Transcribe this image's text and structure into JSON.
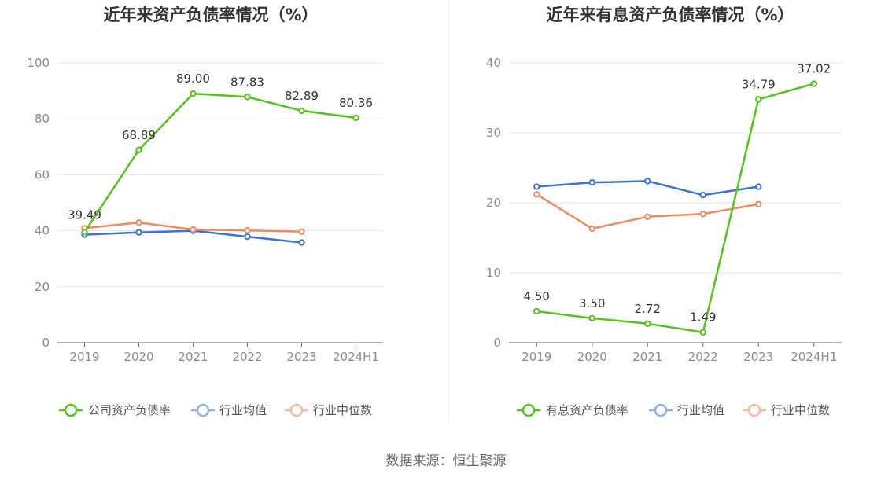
{
  "source_text": "数据来源：恒生聚源",
  "colors": {
    "company": "#52c41a",
    "industry_avg": "#3a72d8",
    "industry_median": "#f08a5d",
    "grid": "#e6e6e6",
    "axis": "#666666",
    "divider": "#e8e8e8",
    "legend_avg": "#8fb0ec",
    "legend_median": "#f7b89c"
  },
  "chart_data": [
    {
      "type": "line",
      "title": "近年来资产负债率情况（%）",
      "categories": [
        "2019",
        "2020",
        "2021",
        "2022",
        "2023",
        "2024H1"
      ],
      "ylim": [
        0,
        100
      ],
      "yticks": [
        0,
        20,
        40,
        60,
        80,
        100
      ],
      "series": [
        {
          "name": "公司资产负债率",
          "key": "company",
          "values": [
            39.49,
            68.89,
            89.0,
            87.83,
            82.89,
            80.36
          ],
          "labels": [
            "39.49",
            "68.89",
            "89.00",
            "87.83",
            "82.89",
            "80.36"
          ]
        },
        {
          "name": "行业均值",
          "key": "industry_avg",
          "values": [
            38.6,
            39.4,
            40.0,
            37.9,
            35.8,
            null
          ]
        },
        {
          "name": "行业中位数",
          "key": "industry_median",
          "values": [
            40.9,
            42.9,
            40.4,
            40.1,
            39.7,
            null
          ]
        }
      ]
    },
    {
      "type": "line",
      "title": "近年来有息资产负债率情况（%）",
      "categories": [
        "2019",
        "2020",
        "2021",
        "2022",
        "2023",
        "2024H1"
      ],
      "ylim": [
        0,
        40
      ],
      "yticks": [
        0,
        10,
        20,
        30,
        40
      ],
      "series": [
        {
          "name": "有息资产负债率",
          "key": "company",
          "values": [
            4.5,
            3.5,
            2.72,
            1.49,
            34.79,
            37.02
          ],
          "labels": [
            "4.50",
            "3.50",
            "2.72",
            "1.49",
            "34.79",
            "37.02"
          ]
        },
        {
          "name": "行业均值",
          "key": "industry_avg",
          "values": [
            22.3,
            22.9,
            23.1,
            21.1,
            22.3,
            null
          ]
        },
        {
          "name": "行业中位数",
          "key": "industry_median",
          "values": [
            21.2,
            16.3,
            18.0,
            18.4,
            19.8,
            null
          ]
        }
      ]
    }
  ]
}
